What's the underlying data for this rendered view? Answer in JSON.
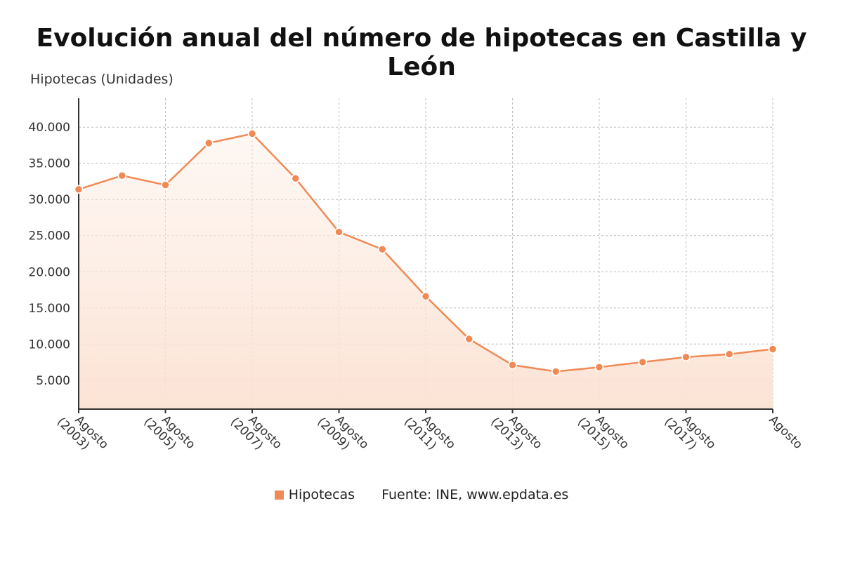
{
  "chart_data": {
    "type": "area",
    "title": "Evolución anual del número de hipotecas en Castilla y León",
    "ylabel": "Hipotecas (Unidades)",
    "ylim": [
      1000,
      44000
    ],
    "yticks": [
      5000,
      10000,
      15000,
      20000,
      25000,
      30000,
      35000,
      40000
    ],
    "ytick_labels": [
      "5.000",
      "10.000",
      "15.000",
      "20.000",
      "25.000",
      "30.000",
      "35.000",
      "40.000"
    ],
    "xticks": [
      {
        "index": 0,
        "line1": "Agosto",
        "line2": "(2003)"
      },
      {
        "index": 2,
        "line1": "Agosto",
        "line2": "(2005)"
      },
      {
        "index": 4,
        "line1": "Agosto",
        "line2": "(2007)"
      },
      {
        "index": 6,
        "line1": "Agosto",
        "line2": "(2009)"
      },
      {
        "index": 8,
        "line1": "Agosto",
        "line2": "(2011)"
      },
      {
        "index": 10,
        "line1": "Agosto",
        "line2": "(2013)"
      },
      {
        "index": 12,
        "line1": "Agosto",
        "line2": "(2015)"
      },
      {
        "index": 14,
        "line1": "Agosto",
        "line2": "(2017)"
      },
      {
        "index": 16,
        "line1": "Agosto",
        "line2": ""
      }
    ],
    "series": [
      {
        "name": "Hipotecas",
        "color": "#f08a55",
        "values": [
          31400,
          33300,
          32000,
          37800,
          39100,
          32900,
          25500,
          23100,
          16600,
          10700,
          7100,
          6200,
          6800,
          7500,
          8200,
          8600,
          9300
        ]
      }
    ],
    "grid": true,
    "legend_position": "bottom-center",
    "source": "Fuente: INE, www.epdata.es"
  }
}
